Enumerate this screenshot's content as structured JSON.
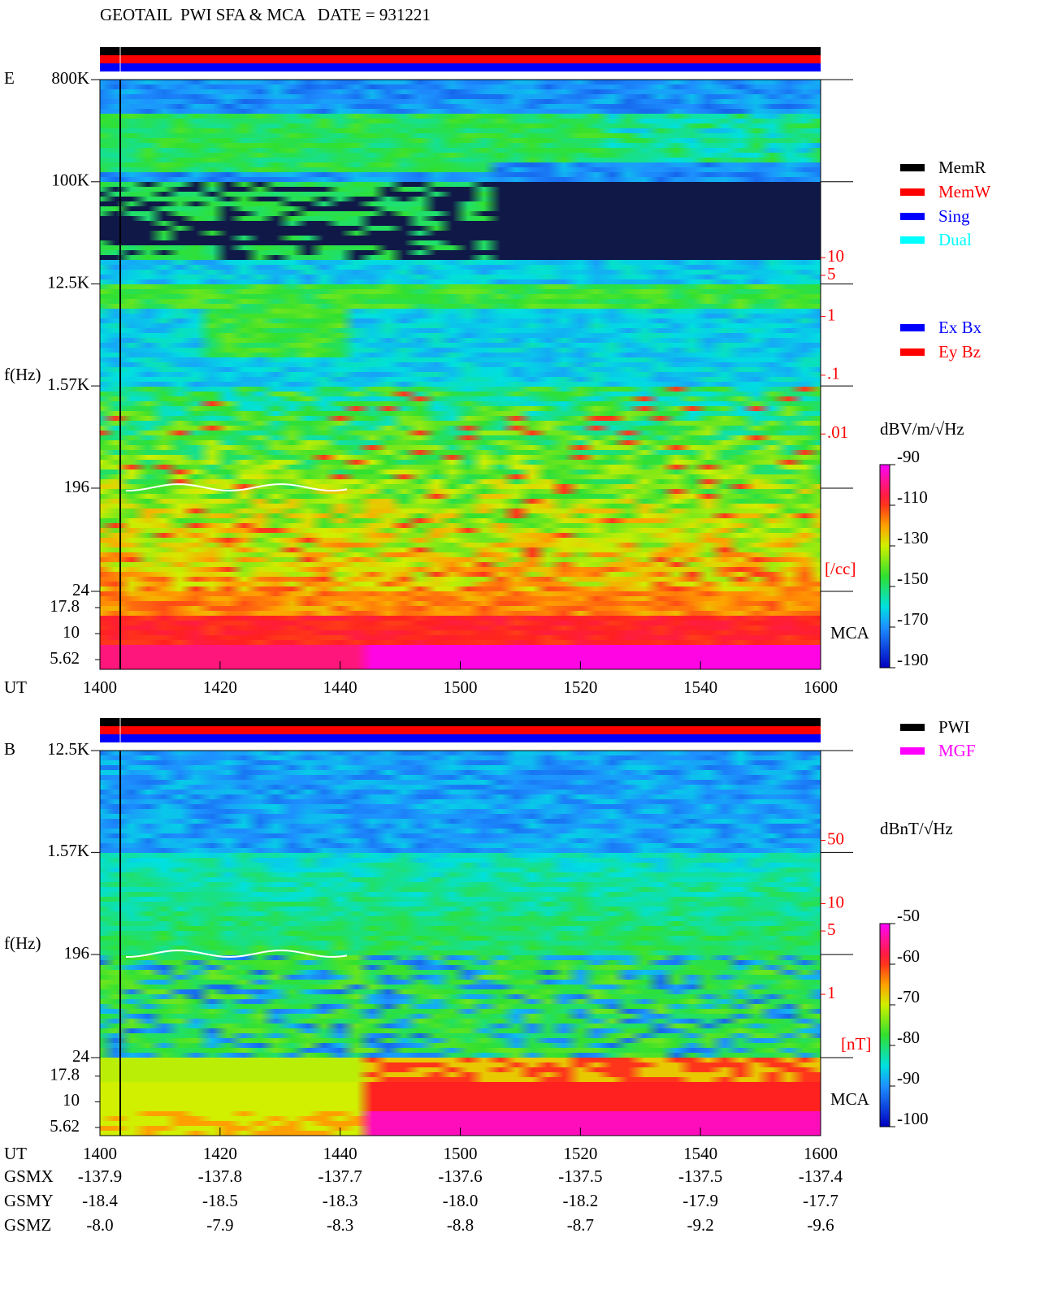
{
  "header": {
    "title": "GEOTAIL  PWI SFA & MCA   DATE = 931221"
  },
  "chart_data": [
    {
      "type": "spectrogram",
      "panel": "E",
      "y_label": "f(Hz)",
      "x_label": "UT",
      "log_y": true,
      "xlim": [
        840,
        960
      ],
      "xticks": [
        {
          "value": 840,
          "label": "1400"
        },
        {
          "value": 860,
          "label": "1420"
        },
        {
          "value": 880,
          "label": "1440"
        },
        {
          "value": 900,
          "label": "1500"
        },
        {
          "value": 920,
          "label": "1520"
        },
        {
          "value": 940,
          "label": "1540"
        },
        {
          "value": 960,
          "label": "1600"
        }
      ],
      "ylim": [
        24,
        800000
      ],
      "yticks": [
        {
          "value": 800000,
          "label": "800K"
        },
        {
          "value": 100000,
          "label": "100K"
        },
        {
          "value": 12500,
          "label": "12.5K"
        },
        {
          "value": 1570,
          "label": "1.57K"
        },
        196,
        24
      ],
      "mca_label": "MCA",
      "mca_ylim": [
        4.53,
        25.5
      ],
      "mca_yticks": [
        17.8,
        10,
        5.62
      ],
      "y2_label": "[/cc]",
      "y2_color": "#ff0000",
      "y2lim": [
        2.1e-05,
        10700
      ],
      "y2ticks": [
        10,
        5,
        1,
        {
          "value": 0.1,
          "label": ".1"
        },
        {
          "value": 0.01,
          "label": ".01"
        }
      ],
      "colorbar": {
        "label": "dBV/m/√Hz",
        "zlim": [
          -190,
          -90
        ],
        "ticks": [
          -90,
          -110,
          -130,
          -150,
          -170,
          -190
        ]
      },
      "legend": [
        {
          "name": "MemR",
          "color": "#000000"
        },
        {
          "name": "MemW",
          "color": "#ff0000"
        },
        {
          "name": "Sing",
          "color": "#0000ff"
        },
        {
          "name": "Dual",
          "color": "#00ffff"
        }
      ],
      "legend2": [
        {
          "name": "Ex Bx",
          "color": "#0000ff"
        },
        {
          "name": "Ey Bz",
          "color": "#ff0000"
        }
      ]
    },
    {
      "type": "spectrogram",
      "panel": "B",
      "y_label": "f(Hz)",
      "x_label": "UT",
      "log_y": true,
      "xlim": [
        840,
        960
      ],
      "xticks": [
        {
          "value": 840,
          "label": "1400"
        },
        {
          "value": 860,
          "label": "1420"
        },
        {
          "value": 880,
          "label": "1440"
        },
        {
          "value": 900,
          "label": "1500"
        },
        {
          "value": 920,
          "label": "1520"
        },
        {
          "value": 940,
          "label": "1540"
        },
        {
          "value": 960,
          "label": "1600"
        }
      ],
      "ylim": [
        24,
        12500
      ],
      "yticks": [
        {
          "value": 12500,
          "label": "12.5K"
        },
        {
          "value": 1570,
          "label": "1.57K"
        },
        196,
        24
      ],
      "mca_label": "MCA",
      "mca_ylim": [
        4.68,
        27
      ],
      "mca_yticks": [
        17.8,
        10,
        5.62
      ],
      "y2_label": "[nT]",
      "y2_color": "#ff0000",
      "y2lim": [
        0.2,
        490
      ],
      "y2ticks": [
        50,
        10,
        5,
        1
      ],
      "colorbar": {
        "label": "dBnT/√Hz",
        "zlim": [
          -100,
          -50
        ],
        "ticks": [
          -50,
          -60,
          -70,
          -80,
          -90,
          -100
        ]
      },
      "legend": [
        {
          "name": "PWI",
          "color": "#000000"
        },
        {
          "name": "MGF",
          "color": "#ff00ff"
        }
      ],
      "orbit": [
        {
          "name": "GSMX",
          "values": [
            "-137.9",
            "-137.8",
            "-137.7",
            "-137.6",
            "-137.5",
            "-137.5",
            "-137.4"
          ]
        },
        {
          "name": "GSMY",
          "values": [
            "-18.4",
            "-18.5",
            "-18.3",
            "-18.0",
            "-18.2",
            "-17.9",
            "-17.7"
          ]
        },
        {
          "name": "GSMZ",
          "values": [
            "-8.0",
            "-7.9",
            "-8.3",
            "-8.8",
            "-8.7",
            "-9.2",
            "-9.6"
          ]
        }
      ]
    }
  ]
}
